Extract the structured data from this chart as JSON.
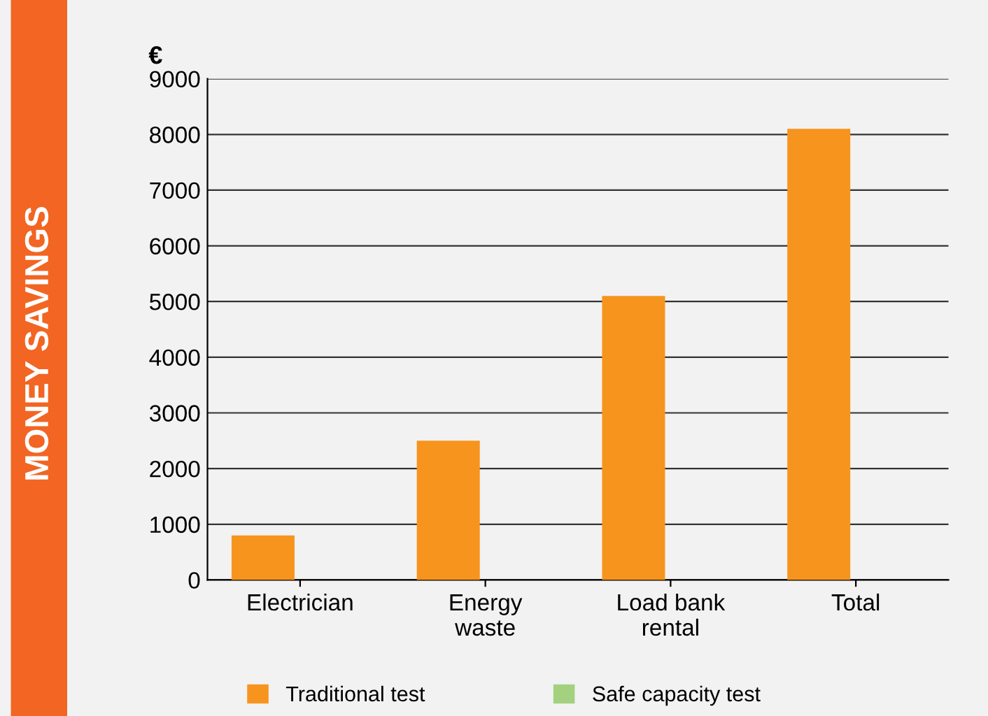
{
  "chart_data": {
    "type": "bar",
    "ylabel": "MONEY SAVINGS",
    "annotations": [
      "€"
    ],
    "categories": [
      "Electrician",
      "Energy\nwaste",
      "Load bank\nrental",
      "Total"
    ],
    "series": [
      {
        "name": "Traditional test",
        "color": "#f7941d",
        "values": [
          800,
          2500,
          5100,
          8100
        ]
      },
      {
        "name": "Safe capacity test",
        "color": "#a3d17f",
        "values": [
          0,
          0,
          0,
          0
        ]
      }
    ],
    "ylim": [
      0,
      9000
    ],
    "yticks": [
      0,
      1000,
      2000,
      3000,
      4000,
      5000,
      6000,
      7000,
      8000,
      9000
    ],
    "grid": "y",
    "legend": "bottom"
  }
}
